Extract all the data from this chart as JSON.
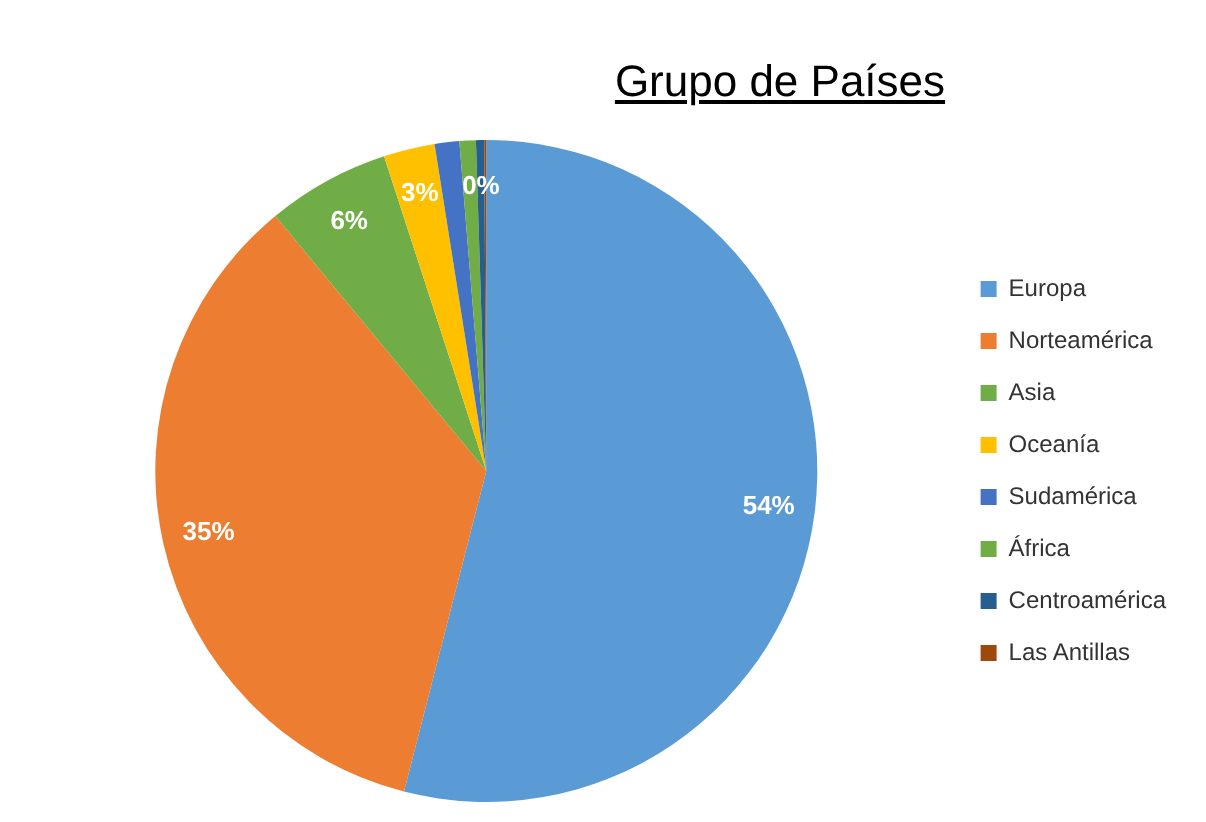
{
  "chart_data": {
    "type": "pie",
    "title": "Grupo de Países",
    "categories": [
      "Europa",
      "Norteamérica",
      "Asia",
      "Oceanía",
      "Sudamérica",
      "África",
      "Centroamérica",
      "Las Antillas"
    ],
    "values": [
      54,
      35,
      6,
      2.5,
      1.2,
      0.8,
      0.4,
      0.1
    ],
    "colors": [
      "#5b9bd5",
      "#ed7d31",
      "#70ad47",
      "#ffc000",
      "#4472c4",
      "#70ad47",
      "#255e91",
      "#9e480e"
    ],
    "value_labels": [
      "54%",
      "35%",
      "6%",
      "3%",
      null,
      null,
      "0%",
      null
    ],
    "legend": "right"
  }
}
